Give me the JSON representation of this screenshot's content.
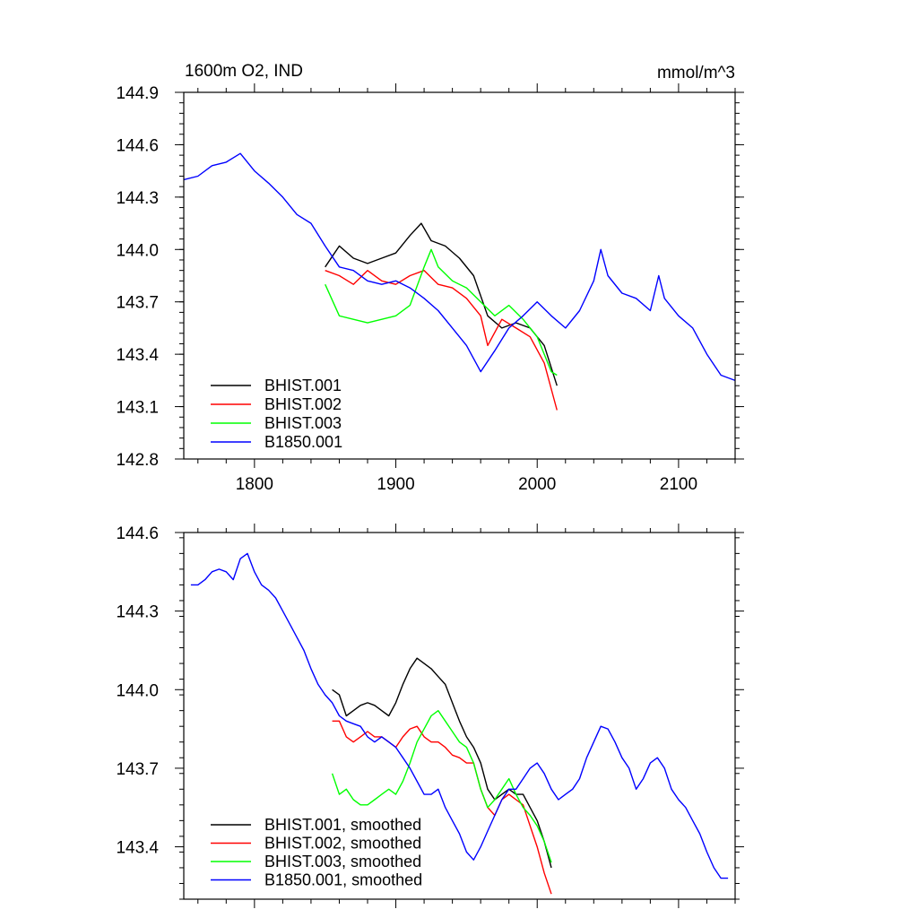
{
  "chart_data": [
    {
      "type": "line",
      "title_left": "1600m O2, IND",
      "title_right": "mmol/m^3",
      "xlim": [
        1750,
        2140
      ],
      "ylim": [
        142.8,
        144.9
      ],
      "x_ticks": [
        1800,
        1900,
        2000,
        2100
      ],
      "x_tick_labels": [
        "1800",
        "1900",
        "2000",
        "2100"
      ],
      "y_ticks": [
        142.8,
        143.1,
        143.4,
        143.7,
        144.0,
        144.3,
        144.6,
        144.9
      ],
      "y_tick_labels": [
        "142.8",
        "143.1",
        "143.4",
        "143.7",
        "144.0",
        "144.3",
        "144.6",
        "144.9"
      ],
      "legend_position": "bottom-left",
      "series": [
        {
          "name": "BHIST.001",
          "color": "#000000",
          "x": [
            1850,
            1860,
            1870,
            1880,
            1890,
            1900,
            1910,
            1918,
            1925,
            1935,
            1945,
            1955,
            1965,
            1975,
            1985,
            1995,
            2005,
            2014
          ],
          "y": [
            143.9,
            144.02,
            143.95,
            143.92,
            143.95,
            143.98,
            144.08,
            144.15,
            144.05,
            144.02,
            143.95,
            143.85,
            143.62,
            143.55,
            143.58,
            143.55,
            143.45,
            143.22
          ]
        },
        {
          "name": "BHIST.002",
          "color": "#ff0000",
          "x": [
            1850,
            1860,
            1870,
            1880,
            1890,
            1900,
            1910,
            1920,
            1930,
            1940,
            1950,
            1960,
            1965,
            1975,
            1985,
            1995,
            2005,
            2014
          ],
          "y": [
            143.88,
            143.85,
            143.8,
            143.88,
            143.82,
            143.8,
            143.85,
            143.88,
            143.8,
            143.78,
            143.72,
            143.62,
            143.45,
            143.6,
            143.55,
            143.5,
            143.35,
            143.08
          ]
        },
        {
          "name": "BHIST.003",
          "color": "#00ff00",
          "x": [
            1850,
            1860,
            1870,
            1880,
            1890,
            1900,
            1910,
            1920,
            1925,
            1930,
            1940,
            1950,
            1960,
            1970,
            1980,
            1990,
            2000,
            2010,
            2014
          ],
          "y": [
            143.8,
            143.62,
            143.6,
            143.58,
            143.6,
            143.62,
            143.68,
            143.9,
            144.0,
            143.9,
            143.82,
            143.78,
            143.7,
            143.62,
            143.68,
            143.6,
            143.5,
            143.3,
            143.28
          ]
        },
        {
          "name": "B1850.001",
          "color": "#0000ff",
          "x": [
            1750,
            1760,
            1770,
            1780,
            1790,
            1800,
            1810,
            1820,
            1830,
            1840,
            1850,
            1860,
            1870,
            1880,
            1890,
            1900,
            1910,
            1920,
            1930,
            1940,
            1950,
            1960,
            1970,
            1980,
            1990,
            2000,
            2010,
            2020,
            2030,
            2040,
            2045,
            2050,
            2060,
            2070,
            2080,
            2086,
            2090,
            2100,
            2110,
            2120,
            2130,
            2140
          ],
          "y": [
            144.4,
            144.42,
            144.48,
            144.5,
            144.55,
            144.45,
            144.38,
            144.3,
            144.2,
            144.15,
            144.02,
            143.9,
            143.88,
            143.82,
            143.8,
            143.82,
            143.78,
            143.72,
            143.65,
            143.55,
            143.45,
            143.3,
            143.42,
            143.55,
            143.62,
            143.7,
            143.62,
            143.55,
            143.65,
            143.82,
            144.0,
            143.85,
            143.75,
            143.72,
            143.65,
            143.85,
            143.72,
            143.62,
            143.55,
            143.4,
            143.28,
            143.25
          ]
        }
      ]
    },
    {
      "type": "line",
      "xlim": [
        1750,
        2140
      ],
      "ylim": [
        143.2,
        144.6
      ],
      "x_ticks": [
        1800,
        1900,
        2000,
        2100
      ],
      "y_ticks": [
        143.4,
        143.7,
        144.0,
        144.3,
        144.6
      ],
      "y_tick_labels": [
        "143.4",
        "143.7",
        "144.0",
        "144.3",
        "144.6"
      ],
      "legend_position": "bottom-left",
      "series": [
        {
          "name": "BHIST.001, smoothed",
          "color": "#000000",
          "x": [
            1855,
            1860,
            1865,
            1870,
            1875,
            1880,
            1885,
            1890,
            1895,
            1900,
            1905,
            1910,
            1915,
            1920,
            1925,
            1930,
            1935,
            1940,
            1945,
            1950,
            1955,
            1960,
            1965,
            1970,
            1975,
            1980,
            1985,
            1990,
            1995,
            2000,
            2005,
            2010
          ],
          "y": [
            144.0,
            143.98,
            143.9,
            143.92,
            143.94,
            143.95,
            143.94,
            143.92,
            143.9,
            143.95,
            144.02,
            144.08,
            144.12,
            144.1,
            144.08,
            144.05,
            144.02,
            143.95,
            143.88,
            143.82,
            143.78,
            143.72,
            143.62,
            143.58,
            143.6,
            143.62,
            143.6,
            143.6,
            143.55,
            143.5,
            143.42,
            143.32
          ]
        },
        {
          "name": "BHIST.002, smoothed",
          "color": "#ff0000",
          "x": [
            1855,
            1860,
            1865,
            1870,
            1875,
            1880,
            1885,
            1890,
            1895,
            1900,
            1905,
            1910,
            1915,
            1920,
            1925,
            1930,
            1935,
            1940,
            1945,
            1950,
            1955,
            1960,
            1965,
            1970,
            1975,
            1980,
            1985,
            1990,
            1995,
            2000,
            2005,
            2010
          ],
          "y": [
            143.88,
            143.88,
            143.82,
            143.8,
            143.82,
            143.84,
            143.82,
            143.82,
            143.8,
            143.78,
            143.82,
            143.85,
            143.86,
            143.82,
            143.8,
            143.8,
            143.78,
            143.75,
            143.74,
            143.72,
            143.72,
            143.62,
            143.55,
            143.52,
            143.58,
            143.6,
            143.58,
            143.56,
            143.48,
            143.4,
            143.3,
            143.22
          ]
        },
        {
          "name": "BHIST.003, smoothed",
          "color": "#00ff00",
          "x": [
            1855,
            1860,
            1865,
            1870,
            1875,
            1880,
            1885,
            1890,
            1895,
            1900,
            1905,
            1910,
            1915,
            1920,
            1925,
            1930,
            1935,
            1940,
            1945,
            1950,
            1955,
            1960,
            1965,
            1970,
            1975,
            1980,
            1985,
            1990,
            1995,
            2000,
            2005,
            2010
          ],
          "y": [
            143.68,
            143.6,
            143.62,
            143.58,
            143.56,
            143.56,
            143.58,
            143.6,
            143.62,
            143.6,
            143.65,
            143.72,
            143.8,
            143.85,
            143.9,
            143.92,
            143.88,
            143.84,
            143.8,
            143.78,
            143.72,
            143.62,
            143.55,
            143.58,
            143.62,
            143.66,
            143.6,
            143.55,
            143.52,
            143.48,
            143.42,
            143.34
          ]
        },
        {
          "name": "B1850.001, smoothed",
          "color": "#0000ff",
          "x": [
            1755,
            1760,
            1765,
            1770,
            1775,
            1780,
            1785,
            1790,
            1795,
            1800,
            1805,
            1810,
            1815,
            1820,
            1825,
            1830,
            1835,
            1840,
            1845,
            1850,
            1855,
            1860,
            1865,
            1870,
            1875,
            1880,
            1885,
            1890,
            1895,
            1900,
            1905,
            1910,
            1915,
            1920,
            1925,
            1930,
            1935,
            1940,
            1945,
            1950,
            1955,
            1960,
            1965,
            1970,
            1975,
            1980,
            1985,
            1990,
            1995,
            2000,
            2005,
            2010,
            2015,
            2020,
            2025,
            2030,
            2035,
            2040,
            2045,
            2050,
            2055,
            2060,
            2065,
            2070,
            2075,
            2080,
            2085,
            2090,
            2095,
            2100,
            2105,
            2110,
            2115,
            2120,
            2125,
            2130,
            2135
          ],
          "y": [
            144.4,
            144.4,
            144.42,
            144.45,
            144.46,
            144.45,
            144.42,
            144.5,
            144.52,
            144.45,
            144.4,
            144.38,
            144.35,
            144.3,
            144.25,
            144.2,
            144.15,
            144.08,
            144.02,
            143.98,
            143.95,
            143.9,
            143.88,
            143.87,
            143.86,
            143.82,
            143.8,
            143.82,
            143.8,
            143.78,
            143.74,
            143.7,
            143.65,
            143.6,
            143.6,
            143.62,
            143.55,
            143.5,
            143.45,
            143.38,
            143.35,
            143.4,
            143.46,
            143.52,
            143.58,
            143.62,
            143.62,
            143.66,
            143.7,
            143.72,
            143.68,
            143.62,
            143.58,
            143.6,
            143.62,
            143.66,
            143.74,
            143.8,
            143.86,
            143.85,
            143.8,
            143.74,
            143.7,
            143.62,
            143.66,
            143.72,
            143.74,
            143.7,
            143.62,
            143.58,
            143.55,
            143.5,
            143.45,
            143.38,
            143.32,
            143.28,
            143.28
          ]
        }
      ]
    }
  ]
}
